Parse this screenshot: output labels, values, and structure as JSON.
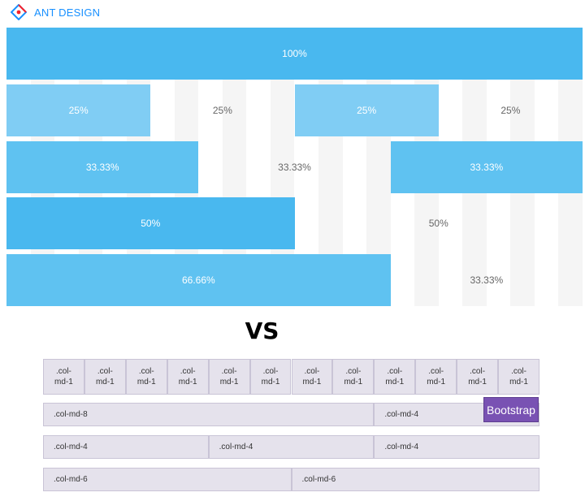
{
  "header": {
    "brand_text": "ANT DESIGN",
    "logo_icon": "ant-design-logo-icon"
  },
  "ant_grid": {
    "colors": {
      "dark": "#49b8ef",
      "mid": "#5fc2f1",
      "light": "#80cdf4",
      "stripe": "#f5f5f5"
    },
    "rows": [
      [
        {
          "span": 24,
          "label": "100%",
          "filled": true,
          "tone": "dark"
        }
      ],
      [
        {
          "span": 6,
          "label": "25%",
          "filled": true,
          "tone": "light"
        },
        {
          "span": 6,
          "label": "25%",
          "filled": false
        },
        {
          "span": 6,
          "label": "25%",
          "filled": true,
          "tone": "light"
        },
        {
          "span": 6,
          "label": "25%",
          "filled": false
        }
      ],
      [
        {
          "span": 8,
          "label": "33.33%",
          "filled": true,
          "tone": "mid"
        },
        {
          "span": 8,
          "label": "33.33%",
          "filled": false
        },
        {
          "span": 8,
          "label": "33.33%",
          "filled": true,
          "tone": "mid"
        }
      ],
      [
        {
          "span": 12,
          "label": "50%",
          "filled": true,
          "tone": "dark"
        },
        {
          "span": 12,
          "label": "50%",
          "filled": false
        }
      ],
      [
        {
          "span": 16,
          "label": "66.66%",
          "filled": true,
          "tone": "mid"
        },
        {
          "span": 8,
          "label": "33.33%",
          "filled": false
        }
      ]
    ]
  },
  "vs_text": "VS",
  "bootstrap_grid": {
    "rows": [
      [
        {
          "span": 1,
          "label": ".col-\nmd-1"
        },
        {
          "span": 1,
          "label": ".col-\nmd-1"
        },
        {
          "span": 1,
          "label": ".col-\nmd-1"
        },
        {
          "span": 1,
          "label": ".col-\nmd-1"
        },
        {
          "span": 1,
          "label": ".col-\nmd-1"
        },
        {
          "span": 1,
          "label": ".col-\nmd-1"
        },
        {
          "span": 1,
          "label": ".col-\nmd-1"
        },
        {
          "span": 1,
          "label": ".col-\nmd-1"
        },
        {
          "span": 1,
          "label": ".col-\nmd-1"
        },
        {
          "span": 1,
          "label": ".col-\nmd-1"
        },
        {
          "span": 1,
          "label": ".col-\nmd-1"
        },
        {
          "span": 1,
          "label": ".col-\nmd-1"
        }
      ],
      [
        {
          "span": 8,
          "label": ".col-md-8"
        },
        {
          "span": 4,
          "label": ".col-md-4"
        }
      ],
      [
        {
          "span": 4,
          "label": ".col-md-4"
        },
        {
          "span": 4,
          "label": ".col-md-4"
        },
        {
          "span": 4,
          "label": ".col-md-4"
        }
      ],
      [
        {
          "span": 6,
          "label": ".col-md-6"
        },
        {
          "span": 6,
          "label": ".col-md-6"
        }
      ]
    ],
    "badge": "Bootstrap"
  }
}
